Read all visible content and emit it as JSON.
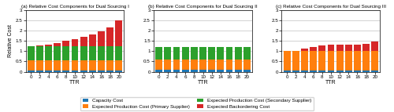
{
  "chart_data": [
    {
      "type": "bar",
      "stacked": true,
      "grid": true,
      "legend": "lower center",
      "title": "(a) Relative Cost Components for Dual Sourcing I",
      "xlabel": "TTR",
      "ylabel": "Relative Cost",
      "categories": [
        "0",
        "2",
        "4",
        "6",
        "8",
        "10",
        "12",
        "14",
        "16",
        "18",
        "20"
      ],
      "ylim": [
        0,
        3
      ],
      "yticks": [
        0,
        0.5,
        1,
        1.5,
        2,
        2.5,
        3
      ],
      "series": [
        {
          "name": "Capacity Cost",
          "values": [
            0.06,
            0.06,
            0.06,
            0.06,
            0.06,
            0.06,
            0.06,
            0.06,
            0.06,
            0.06,
            0.06
          ]
        },
        {
          "name": "Expected Production Cost (Primary Supplier)",
          "values": [
            0.48,
            0.48,
            0.48,
            0.48,
            0.48,
            0.48,
            0.48,
            0.48,
            0.48,
            0.48,
            0.48
          ]
        },
        {
          "name": "Expected Production Cost (Secondary Supplier)",
          "values": [
            0.69,
            0.69,
            0.69,
            0.69,
            0.69,
            0.69,
            0.69,
            0.69,
            0.69,
            0.69,
            0.69
          ]
        },
        {
          "name": "Expected Backordering Cost",
          "values": [
            0.02,
            0.03,
            0.07,
            0.17,
            0.26,
            0.35,
            0.47,
            0.6,
            0.74,
            0.92,
            1.27
          ]
        }
      ]
    },
    {
      "type": "bar",
      "stacked": true,
      "grid": true,
      "legend": "lower center",
      "title": "(b) Relative Cost Components for Dual Sourcing II",
      "xlabel": "TTR",
      "categories": [
        "0",
        "2",
        "4",
        "6",
        "8",
        "10",
        "12",
        "14",
        "16",
        "18",
        "20"
      ],
      "ylim": [
        0,
        3
      ],
      "yticks": [
        0,
        0.5,
        1,
        1.5,
        2,
        2.5,
        3
      ],
      "series": [
        {
          "name": "Capacity Cost",
          "values": [
            0.09,
            0.09,
            0.09,
            0.09,
            0.09,
            0.09,
            0.09,
            0.09,
            0.09,
            0.09,
            0.09
          ]
        },
        {
          "name": "Expected Production Cost (Primary Supplier)",
          "values": [
            0.5,
            0.5,
            0.5,
            0.5,
            0.5,
            0.5,
            0.5,
            0.5,
            0.5,
            0.5,
            0.5
          ]
        },
        {
          "name": "Expected Production Cost (Secondary Supplier)",
          "values": [
            0.6,
            0.6,
            0.6,
            0.6,
            0.6,
            0.6,
            0.6,
            0.6,
            0.6,
            0.6,
            0.6
          ]
        },
        {
          "name": "Expected Backordering Cost",
          "values": [
            0.03,
            0.03,
            0.03,
            0.03,
            0.03,
            0.03,
            0.03,
            0.03,
            0.03,
            0.03,
            0.03
          ]
        }
      ]
    },
    {
      "type": "bar",
      "stacked": true,
      "grid": true,
      "legend": "lower center",
      "title": "(c) Relative Cost Components for Dual Sourcing III",
      "xlabel": "TTR",
      "categories": [
        "0",
        "2",
        "4",
        "6",
        "8",
        "10",
        "12",
        "14",
        "16",
        "18",
        "20"
      ],
      "ylim": [
        0,
        3
      ],
      "yticks": [
        0,
        0.5,
        1,
        1.5,
        2,
        2.5,
        3
      ],
      "series": [
        {
          "name": "Capacity Cost",
          "values": [
            0.04,
            0.04,
            0.04,
            0.04,
            0.04,
            0.04,
            0.04,
            0.04,
            0.04,
            0.04,
            0.04
          ]
        },
        {
          "name": "Expected Production Cost (Primary Supplier)",
          "values": [
            0.97,
            0.97,
            0.97,
            0.97,
            0.97,
            0.97,
            0.97,
            0.97,
            0.97,
            0.97,
            0.97
          ]
        },
        {
          "name": "Expected Production Cost (Secondary Supplier)",
          "values": [
            0.01,
            0.01,
            0.01,
            0.01,
            0.01,
            0.01,
            0.01,
            0.01,
            0.01,
            0.01,
            0.01
          ]
        },
        {
          "name": "Expected Backordering Cost",
          "values": [
            0.0,
            0.01,
            0.09,
            0.19,
            0.27,
            0.29,
            0.29,
            0.3,
            0.3,
            0.33,
            0.46
          ]
        }
      ]
    }
  ]
}
